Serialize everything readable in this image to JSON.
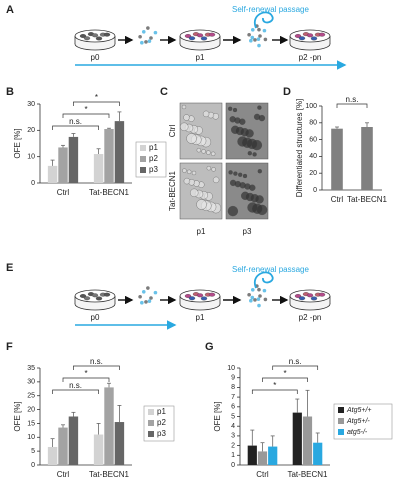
{
  "panels": [
    "A",
    "B",
    "C",
    "D",
    "E",
    "F",
    "G"
  ],
  "diagram_a": {
    "title": "Self-renewal passage",
    "stages": [
      "p0",
      "p1",
      "p2 -pn"
    ]
  },
  "diagram_e": {
    "title": "Self-renewal passage",
    "stages": [
      "p0",
      "p1",
      "p2 -pn"
    ]
  },
  "images_c": {
    "rows": [
      "Ctrl",
      "Tat-BECN1"
    ],
    "columns": [
      "p1",
      "p3"
    ]
  },
  "chart_data": [
    {
      "type": "bar",
      "ylabel": "OFE [%]",
      "categories": [
        "Ctrl",
        "Tat-BECN1"
      ],
      "series": [
        {
          "name": "p1",
          "color": "#d3d3d3",
          "values": [
            6.5,
            11
          ],
          "errors": [
            2.2,
            2
          ]
        },
        {
          "name": "p2",
          "color": "#a3a3a3",
          "values": [
            13.5,
            20.5
          ],
          "errors": [
            0.8,
            0.3
          ]
        },
        {
          "name": "p3",
          "color": "#666666",
          "values": [
            17.5,
            23.5
          ],
          "errors": [
            1.3,
            3.5
          ]
        }
      ],
      "ylim": [
        0,
        30
      ],
      "yticks": [
        0,
        10,
        20,
        30
      ],
      "annotations": [
        "n.s.",
        "*",
        "*"
      ],
      "legend": "right"
    },
    {
      "type": "bar",
      "ylabel": "Differentiated structures [%]",
      "categories": [
        "Ctrl",
        "Tat-BECN1"
      ],
      "color": "#808080",
      "values": [
        73,
        75
      ],
      "errors": [
        2,
        5
      ],
      "ylim": [
        0,
        100
      ],
      "yticks": [
        0,
        20,
        40,
        60,
        80,
        100
      ],
      "annotations": [
        "n.s."
      ]
    },
    {
      "type": "bar",
      "ylabel": "OFE [%]",
      "categories": [
        "Ctrl",
        "Tat-BECN1"
      ],
      "series": [
        {
          "name": "p1",
          "color": "#d3d3d3",
          "values": [
            6.5,
            11
          ],
          "errors": [
            3,
            4
          ]
        },
        {
          "name": "p2",
          "color": "#a3a3a3",
          "values": [
            13.5,
            28
          ],
          "errors": [
            1,
            1.5
          ]
        },
        {
          "name": "p3",
          "color": "#666666",
          "values": [
            17.5,
            15.5
          ],
          "errors": [
            1.5,
            6
          ]
        }
      ],
      "ylim": [
        0,
        35
      ],
      "yticks": [
        0,
        5,
        10,
        15,
        20,
        25,
        30,
        35
      ],
      "annotations": [
        "n.s.",
        "*",
        "n.s."
      ],
      "legend": "right"
    },
    {
      "type": "bar",
      "ylabel": "OFE [%]",
      "categories": [
        "Ctrl",
        "Tat-BECN1"
      ],
      "series": [
        {
          "name": "Atg5+/+",
          "color": "#222222",
          "values": [
            2.0,
            5.4
          ],
          "errors": [
            1.6,
            1.4
          ]
        },
        {
          "name": "Atg5+/-",
          "color": "#999999",
          "values": [
            1.4,
            5.0
          ],
          "errors": [
            0.9,
            2.7
          ]
        },
        {
          "name": "atg5-/-",
          "color": "#29a8e0",
          "values": [
            1.9,
            2.3
          ],
          "errors": [
            1.1,
            1.0
          ]
        }
      ],
      "ylim": [
        0,
        10
      ],
      "yticks": [
        0,
        1,
        2,
        3,
        4,
        5,
        6,
        7,
        8,
        9,
        10
      ],
      "annotations": [
        "*",
        "*",
        "n.s."
      ],
      "legend": "right"
    }
  ]
}
